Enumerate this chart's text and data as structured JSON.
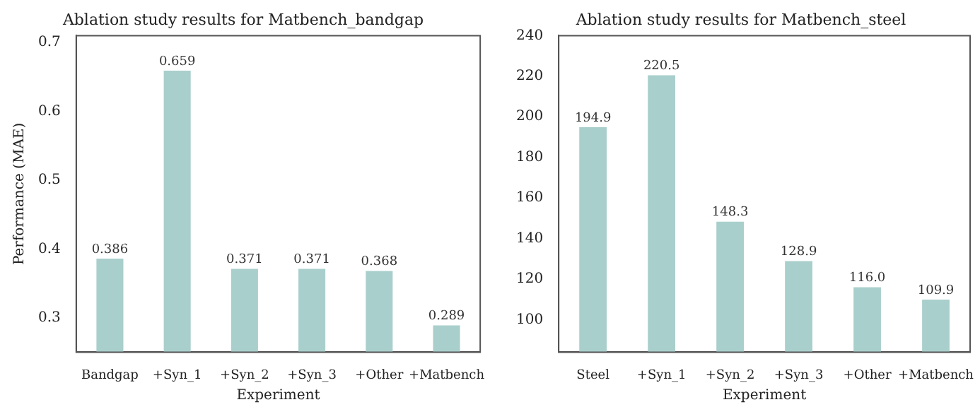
{
  "chart_data": [
    {
      "type": "bar",
      "title": "Ablation study results for Matbench_bandgap",
      "xlabel": "Experiment",
      "ylabel": "Performance (MAE)",
      "categories": [
        "Bandgap",
        "+Syn_1",
        "+Syn_2",
        "+Syn_3",
        "+Other",
        "+Matbench"
      ],
      "values": [
        0.386,
        0.659,
        0.371,
        0.371,
        0.368,
        0.289
      ],
      "value_labels": [
        "0.386",
        "0.659",
        "0.371",
        "0.371",
        "0.368",
        "0.289"
      ],
      "color": "#a9cfcc",
      "ylim": [
        0.25,
        0.71
      ],
      "yticks": [
        0.3,
        0.4,
        0.5,
        0.6,
        0.7
      ],
      "grid": false,
      "legend": false
    },
    {
      "type": "bar",
      "title": "Ablation study results for Matbench_steel",
      "xlabel": "Experiment",
      "categories": [
        "Steel",
        "+Syn_1",
        "+Syn_2",
        "+Syn_3",
        "+Other",
        "+Matbench"
      ],
      "values": [
        194.9,
        220.5,
        148.3,
        128.9,
        116.0,
        109.9
      ],
      "value_labels": [
        "194.9",
        "220.5",
        "148.3",
        "128.9",
        "116.0",
        "109.9"
      ],
      "color": "#a9cfcc",
      "ylim": [
        84,
        240
      ],
      "yticks": [
        100,
        120,
        140,
        160,
        180,
        200,
        220,
        240
      ],
      "grid": false,
      "legend": false
    }
  ]
}
